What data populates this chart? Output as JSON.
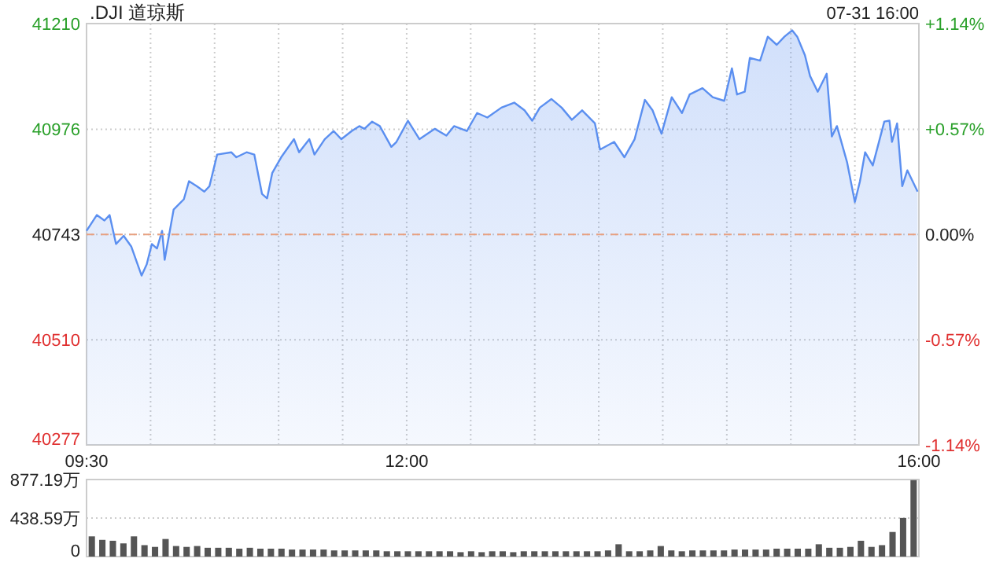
{
  "chart_data": [
    {
      "type": "area",
      "title": ".DJI 道琼斯",
      "subtitle": "07-31 16:00",
      "x": [
        9.5,
        9.58,
        9.64,
        9.68,
        9.73,
        9.79,
        9.85,
        9.93,
        9.97,
        10.01,
        10.05,
        10.09,
        10.11,
        10.18,
        10.26,
        10.3,
        10.36,
        10.42,
        10.46,
        10.52,
        10.63,
        10.67,
        10.75,
        10.81,
        10.87,
        10.91,
        10.95,
        11.02,
        11.12,
        11.16,
        11.24,
        11.28,
        11.36,
        11.43,
        11.49,
        11.57,
        11.63,
        11.67,
        11.73,
        11.79,
        11.88,
        11.92,
        12.01,
        12.1,
        12.22,
        12.31,
        12.37,
        12.47,
        12.55,
        12.63,
        12.74,
        12.84,
        12.92,
        12.98,
        13.04,
        13.13,
        13.21,
        13.29,
        13.37,
        13.47,
        13.51,
        13.62,
        13.7,
        13.78,
        13.86,
        13.92,
        13.99,
        14.07,
        14.15,
        14.21,
        14.31,
        14.39,
        14.48,
        14.54,
        14.58,
        14.64,
        14.68,
        14.76,
        14.82,
        14.89,
        14.95,
        15.01,
        15.05,
        15.11,
        15.15,
        15.21,
        15.28,
        15.32,
        15.36,
        15.44,
        15.5,
        15.54,
        15.58,
        15.64,
        15.73,
        15.77,
        15.79,
        15.83,
        15.87,
        15.91,
        15.99
      ],
      "series": [
        {
          "color": "#5b8ff0",
          "values": [
            40751,
            40786,
            40774,
            40786,
            40722,
            40740,
            40716,
            40652,
            40677,
            40722,
            40712,
            40751,
            40687,
            40798,
            40821,
            40861,
            40850,
            40838,
            40850,
            40920,
            40925,
            40914,
            40925,
            40920,
            40833,
            40823,
            40879,
            40914,
            40954,
            40925,
            40954,
            40920,
            40954,
            40972,
            40954,
            40972,
            40983,
            40977,
            40993,
            40983,
            40937,
            40948,
            40995,
            40954,
            40977,
            40962,
            40983,
            40972,
            41012,
            41002,
            41024,
            41035,
            41018,
            40995,
            41024,
            41043,
            41024,
            40997,
            41018,
            40989,
            40931,
            40948,
            40914,
            40954,
            41041,
            41018,
            40966,
            41047,
            41012,
            41053,
            41067,
            41047,
            41039,
            41111,
            41053,
            41059,
            41134,
            41128,
            41181,
            41163,
            41181,
            41195,
            41181,
            41140,
            41094,
            41059,
            41099,
            40960,
            40983,
            40902,
            40815,
            40861,
            40925,
            40896,
            40993,
            40995,
            40948,
            40989,
            40850,
            40885,
            40838
          ]
        }
      ],
      "xlim": [
        9.5,
        16
      ],
      "xticks": [
        {
          "value": 9.5,
          "label": "09:30"
        },
        {
          "value": 10,
          "label": null
        },
        {
          "value": 10.5,
          "label": null
        },
        {
          "value": 11,
          "label": null
        },
        {
          "value": 11.5,
          "label": null
        },
        {
          "value": 12,
          "label": "12:00"
        },
        {
          "value": 12.5,
          "label": null
        },
        {
          "value": 13,
          "label": null
        },
        {
          "value": 13.5,
          "label": null
        },
        {
          "value": 14,
          "label": null
        },
        {
          "value": 14.5,
          "label": null
        },
        {
          "value": 15,
          "label": null
        },
        {
          "value": 15.5,
          "label": null
        },
        {
          "value": 16,
          "label": "16:00"
        }
      ],
      "ylim": [
        40277,
        41210
      ],
      "yticks": [
        40277,
        40510,
        40743,
        40976,
        41210
      ],
      "y2lim": [
        -1.14,
        1.14
      ],
      "y2ticks": [
        {
          "value": -1.14,
          "label": "-1.14%"
        },
        {
          "value": -0.57,
          "label": "-0.57%"
        },
        {
          "value": 0,
          "label": "0.00%"
        },
        {
          "value": 0.57,
          "label": "+0.57%"
        },
        {
          "value": 1.14,
          "label": "+1.14%"
        }
      ],
      "ref_lines": [
        {
          "axis": "y",
          "value": 40743,
          "color": "#e8a080",
          "line_style": "dashed"
        }
      ],
      "grid": true
    },
    {
      "type": "bar",
      "categories": [
        null,
        null,
        null,
        null,
        null,
        null,
        null,
        null,
        null,
        null,
        null,
        null,
        null,
        null,
        null,
        null,
        null,
        null,
        null,
        null,
        null,
        null,
        null,
        null,
        null,
        null,
        null,
        null,
        null,
        null,
        null,
        null,
        null,
        null,
        null,
        null,
        null,
        null,
        null,
        null,
        null,
        null,
        null,
        null,
        null,
        null,
        null,
        null,
        null,
        null,
        null,
        null,
        null,
        null,
        null,
        null,
        null,
        null,
        null,
        null,
        null,
        null,
        null,
        null,
        null,
        null,
        null,
        null,
        null,
        null,
        null,
        null,
        null,
        null,
        null,
        null,
        null,
        null,
        null
      ],
      "values": [
        230,
        190,
        180,
        150,
        230,
        130,
        110,
        200,
        120,
        110,
        120,
        100,
        100,
        100,
        90,
        100,
        90,
        90,
        90,
        80,
        80,
        80,
        80,
        70,
        70,
        70,
        70,
        70,
        60,
        60,
        60,
        60,
        60,
        60,
        60,
        50,
        60,
        50,
        60,
        60,
        50,
        60,
        60,
        60,
        60,
        60,
        60,
        60,
        60,
        70,
        140,
        60,
        60,
        70,
        120,
        70,
        60,
        70,
        70,
        70,
        70,
        80,
        80,
        80,
        80,
        90,
        90,
        90,
        90,
        140,
        100,
        100,
        110,
        180,
        110,
        130,
        280,
        440,
        870
      ],
      "color": "#555555",
      "ylim": [
        0,
        877.19
      ],
      "yticks": [
        0,
        {
          "value": 438.59,
          "label": "438.59万"
        },
        {
          "value": 877.19,
          "label": "877.19万"
        }
      ],
      "tick_labels": "y",
      "grid": "y"
    }
  ]
}
